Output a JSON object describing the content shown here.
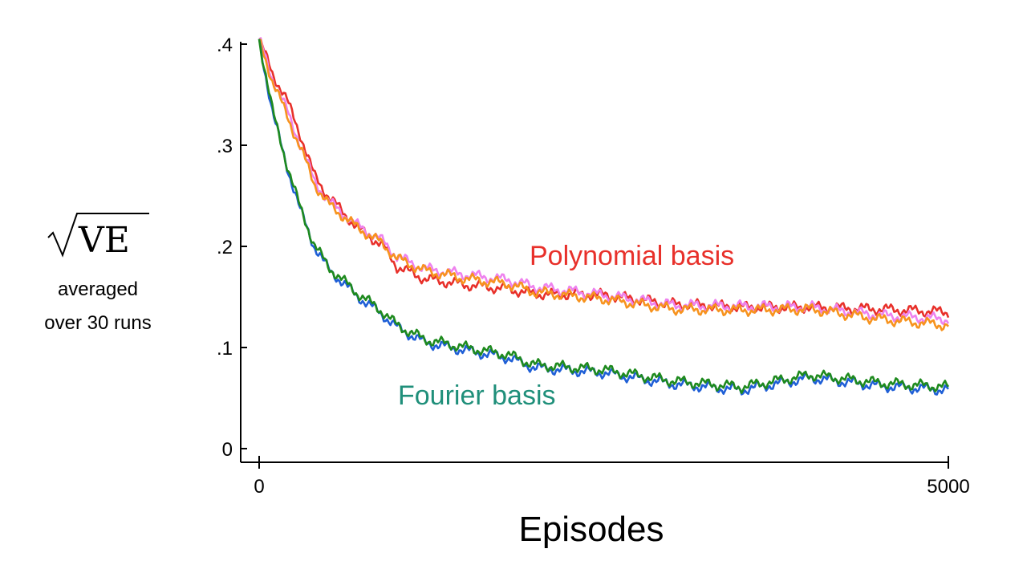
{
  "chart_data": {
    "type": "line",
    "xlabel": "Episodes",
    "ylabel": "VE",
    "ylabel_sub": [
      "averaged",
      "over 30 runs"
    ],
    "xlim": [
      0,
      5000
    ],
    "ylim": [
      0,
      0.4
    ],
    "x_tick_labels": [
      {
        "value": 0,
        "label": "0"
      },
      {
        "value": 5000,
        "label": "5000"
      }
    ],
    "y_tick_labels": [
      {
        "value": 0,
        "label": "0"
      },
      {
        "value": 0.1,
        "label": ".1"
      },
      {
        "value": 0.2,
        "label": ".2"
      },
      {
        "value": 0.3,
        "label": ".3"
      },
      {
        "value": 0.4,
        "label": ".4"
      }
    ],
    "grid": false,
    "annotations": [
      {
        "text": "Polynomial basis",
        "color": "#e8302a"
      },
      {
        "text": "Fourier basis",
        "color": "#1f8f7a"
      }
    ],
    "series": [
      {
        "color": "#e8302a",
        "x": [
          0,
          100,
          200,
          300,
          400,
          500,
          700,
          900,
          1000,
          1200,
          1500,
          1800,
          2000,
          2500,
          3000,
          3500,
          4000,
          4500,
          5000
        ],
        "values": [
          0.405,
          0.37,
          0.345,
          0.31,
          0.27,
          0.25,
          0.22,
          0.2,
          0.18,
          0.168,
          0.162,
          0.158,
          0.153,
          0.152,
          0.143,
          0.14,
          0.14,
          0.138,
          0.135
        ]
      },
      {
        "color": "#ee82ee",
        "x": [
          0,
          100,
          200,
          300,
          400,
          500,
          700,
          900,
          1000,
          1200,
          1500,
          1800,
          2000,
          2500,
          3000,
          3500,
          4000,
          4500,
          5000
        ],
        "values": [
          0.405,
          0.365,
          0.335,
          0.3,
          0.265,
          0.245,
          0.222,
          0.205,
          0.19,
          0.178,
          0.172,
          0.167,
          0.16,
          0.152,
          0.142,
          0.141,
          0.14,
          0.132,
          0.128
        ]
      },
      {
        "color": "#f7931e",
        "x": [
          0,
          100,
          200,
          300,
          400,
          500,
          700,
          900,
          1000,
          1200,
          1500,
          1800,
          2000,
          2500,
          3000,
          3500,
          4000,
          4500,
          5000
        ],
        "values": [
          0.405,
          0.362,
          0.33,
          0.297,
          0.262,
          0.242,
          0.22,
          0.202,
          0.188,
          0.176,
          0.168,
          0.163,
          0.155,
          0.148,
          0.138,
          0.137,
          0.138,
          0.128,
          0.122
        ]
      },
      {
        "color": "#1f5fd6",
        "x": [
          0,
          100,
          200,
          300,
          400,
          500,
          700,
          900,
          1000,
          1200,
          1500,
          1800,
          2000,
          2500,
          3000,
          3500,
          4000,
          4500,
          5000
        ],
        "values": [
          0.405,
          0.33,
          0.28,
          0.235,
          0.2,
          0.178,
          0.152,
          0.132,
          0.12,
          0.105,
          0.097,
          0.09,
          0.08,
          0.075,
          0.064,
          0.058,
          0.07,
          0.062,
          0.058
        ]
      },
      {
        "color": "#1e8a1e",
        "x": [
          0,
          100,
          200,
          300,
          400,
          500,
          700,
          900,
          1000,
          1200,
          1500,
          1800,
          2000,
          2500,
          3000,
          3500,
          4000,
          4500,
          5000
        ],
        "values": [
          0.405,
          0.332,
          0.282,
          0.237,
          0.202,
          0.18,
          0.155,
          0.135,
          0.122,
          0.108,
          0.1,
          0.093,
          0.083,
          0.078,
          0.067,
          0.061,
          0.073,
          0.065,
          0.061
        ]
      }
    ]
  }
}
